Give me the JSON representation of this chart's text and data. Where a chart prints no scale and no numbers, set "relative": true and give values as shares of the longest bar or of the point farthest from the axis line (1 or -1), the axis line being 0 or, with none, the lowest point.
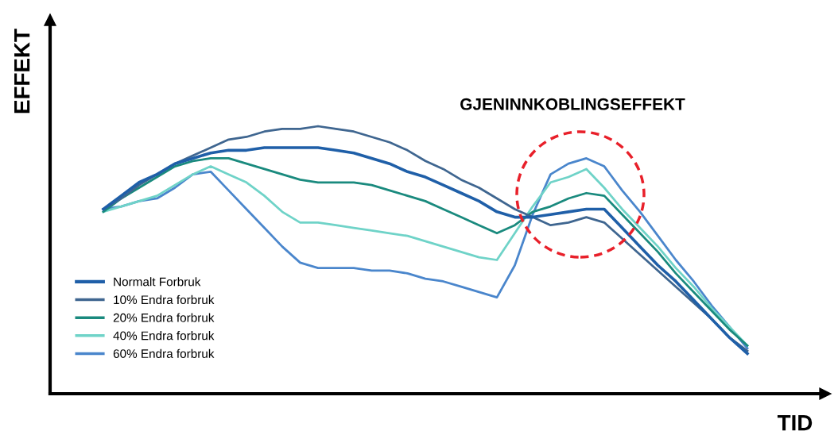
{
  "chart_data": {
    "type": "line",
    "relative": true,
    "xlabel": "TID",
    "ylabel": "EFFEKT",
    "annotations": [
      "GJENINNKOBLINGSEFFEKT"
    ],
    "categories": [
      null,
      null,
      null,
      null,
      null,
      null,
      null,
      null,
      null,
      null,
      null,
      null,
      null,
      null,
      null,
      null,
      null,
      null,
      null,
      null,
      null,
      null,
      null,
      null,
      null,
      null,
      null,
      null,
      null,
      null,
      null,
      null,
      null,
      null,
      null,
      null,
      null
    ],
    "legend": "bottom left",
    "marker": "none",
    "line_style": "solid",
    "series": [
      {
        "name": "Normalt Forbruk",
        "color": "#1f5fa8",
        "values": [
          0.69,
          0.74,
          0.79,
          0.82,
          0.86,
          0.88,
          0.9,
          0.91,
          0.91,
          0.92,
          0.92,
          0.92,
          0.92,
          0.91,
          0.9,
          0.88,
          0.86,
          0.83,
          0.81,
          0.78,
          0.75,
          0.72,
          0.68,
          0.66,
          0.66,
          0.67,
          0.68,
          0.69,
          0.69,
          0.62,
          0.55,
          0.48,
          0.42,
          0.35,
          0.28,
          0.21,
          0.15
        ]
      },
      {
        "name": "10% Endra forbruk",
        "color": "#3f6690",
        "values": [
          0.69,
          0.73,
          0.78,
          0.82,
          0.86,
          0.89,
          0.92,
          0.95,
          0.96,
          0.98,
          0.99,
          0.99,
          1.0,
          0.99,
          0.98,
          0.96,
          0.94,
          0.91,
          0.87,
          0.84,
          0.8,
          0.77,
          0.73,
          0.69,
          0.66,
          0.63,
          0.64,
          0.66,
          0.64,
          0.58,
          0.52,
          0.46,
          0.4,
          0.34,
          0.28,
          0.21,
          0.16
        ]
      },
      {
        "name": "20% Endra forbruk",
        "color": "#1a8a7e",
        "values": [
          0.68,
          0.73,
          0.77,
          0.81,
          0.85,
          0.87,
          0.88,
          0.88,
          0.86,
          0.84,
          0.82,
          0.8,
          0.79,
          0.79,
          0.79,
          0.78,
          0.76,
          0.74,
          0.72,
          0.69,
          0.66,
          0.63,
          0.6,
          0.63,
          0.68,
          0.7,
          0.73,
          0.75,
          0.74,
          0.67,
          0.6,
          0.53,
          0.45,
          0.38,
          0.31,
          0.24,
          0.18
        ]
      },
      {
        "name": "40% Endra forbruk",
        "color": "#6fd3c8",
        "values": [
          0.68,
          0.7,
          0.72,
          0.74,
          0.78,
          0.82,
          0.85,
          0.82,
          0.79,
          0.74,
          0.68,
          0.64,
          0.64,
          0.63,
          0.62,
          0.61,
          0.6,
          0.59,
          0.57,
          0.55,
          0.53,
          0.51,
          0.5,
          0.6,
          0.7,
          0.79,
          0.81,
          0.84,
          0.77,
          0.69,
          0.62,
          0.55,
          0.47,
          0.4,
          0.32,
          0.25,
          0.18
        ]
      },
      {
        "name": "60% Endra forbruk",
        "color": "#4a86cc",
        "values": [
          0.69,
          0.7,
          0.72,
          0.73,
          0.77,
          0.82,
          0.83,
          0.76,
          0.69,
          0.62,
          0.55,
          0.49,
          0.47,
          0.47,
          0.47,
          0.46,
          0.46,
          0.45,
          0.43,
          0.42,
          0.4,
          0.38,
          0.36,
          0.48,
          0.67,
          0.82,
          0.86,
          0.88,
          0.85,
          0.76,
          0.68,
          0.59,
          0.5,
          0.42,
          0.33,
          0.25,
          0.17
        ]
      }
    ]
  }
}
